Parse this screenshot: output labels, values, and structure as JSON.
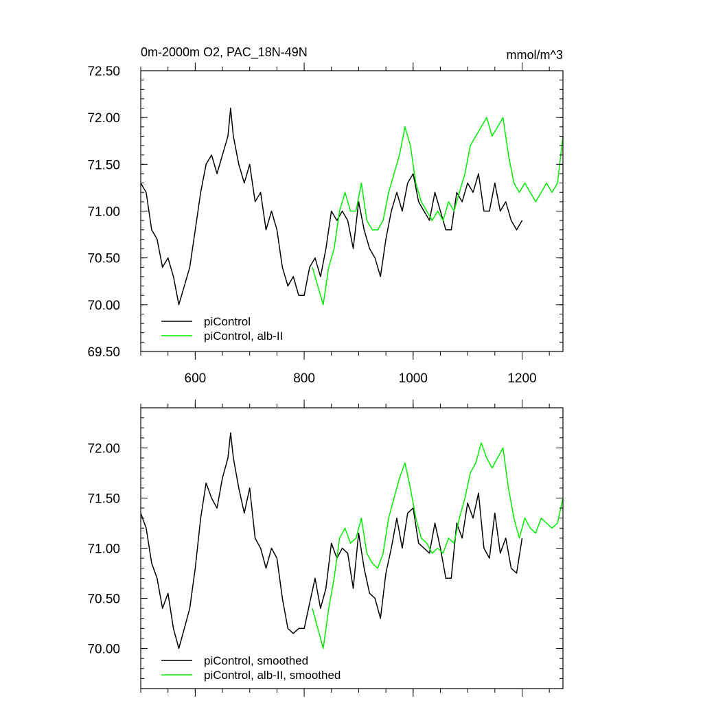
{
  "figure": {
    "top_panel_title": "0m-2000m O2, PAC_18N-49N",
    "units": "mmol/m^3"
  },
  "colors": {
    "control": "#000000",
    "alb": "#00ee00",
    "background": "#ffffff"
  },
  "chart_data": [
    {
      "type": "line",
      "panel": "top",
      "title": "0m-2000m O2, PAC_18N-49N",
      "units": "mmol/m^3",
      "xlim": [
        500,
        1275
      ],
      "ylim": [
        69.5,
        72.5
      ],
      "x_ticks": [
        600,
        800,
        1000,
        1200
      ],
      "x_tick_labels": [
        "600",
        "800",
        "1000",
        "1200"
      ],
      "y_ticks": [
        69.5,
        70.0,
        70.5,
        71.0,
        71.5,
        72.0,
        72.5
      ],
      "y_tick_labels": [
        "69.50",
        "70.00",
        "70.50",
        "71.00",
        "71.50",
        "72.00",
        "72.50"
      ],
      "legend": {
        "position": "bottom-left",
        "entries": [
          "piControl",
          "piControl, alb-II"
        ]
      },
      "series": [
        {
          "name": "piControl",
          "color": "#000000",
          "x": [
            500,
            510,
            520,
            530,
            540,
            550,
            560,
            570,
            580,
            590,
            600,
            610,
            620,
            630,
            640,
            650,
            660,
            665,
            670,
            680,
            690,
            700,
            710,
            720,
            730,
            740,
            750,
            760,
            770,
            780,
            790,
            800,
            810,
            820,
            830,
            840,
            850,
            860,
            870,
            880,
            890,
            900,
            910,
            920,
            930,
            940,
            950,
            960,
            970,
            980,
            990,
            1000,
            1010,
            1020,
            1030,
            1040,
            1050,
            1060,
            1070,
            1080,
            1090,
            1100,
            1110,
            1120,
            1130,
            1140,
            1150,
            1160,
            1170,
            1180,
            1190,
            1200
          ],
          "y": [
            71.3,
            71.2,
            70.8,
            70.7,
            70.4,
            70.5,
            70.3,
            70.0,
            70.2,
            70.4,
            70.8,
            71.2,
            71.5,
            71.6,
            71.4,
            71.6,
            71.8,
            72.1,
            71.8,
            71.5,
            71.3,
            71.5,
            71.1,
            71.2,
            70.8,
            71.0,
            70.8,
            70.4,
            70.2,
            70.3,
            70.1,
            70.1,
            70.4,
            70.5,
            70.3,
            70.6,
            71.0,
            70.9,
            71.0,
            70.9,
            70.6,
            71.1,
            70.8,
            70.6,
            70.5,
            70.3,
            70.7,
            71.0,
            71.2,
            71.0,
            71.3,
            71.4,
            71.1,
            71.0,
            70.9,
            71.2,
            71.0,
            70.8,
            70.8,
            71.2,
            71.1,
            71.3,
            71.2,
            71.4,
            71.0,
            71.0,
            71.3,
            71.0,
            71.1,
            70.9,
            70.8,
            70.9
          ]
        },
        {
          "name": "piControl, alb-II",
          "color": "#00ee00",
          "x": [
            815,
            825,
            835,
            845,
            855,
            865,
            875,
            885,
            895,
            905,
            915,
            925,
            935,
            945,
            955,
            965,
            975,
            985,
            995,
            1005,
            1015,
            1025,
            1035,
            1045,
            1055,
            1065,
            1075,
            1085,
            1095,
            1105,
            1115,
            1125,
            1135,
            1145,
            1155,
            1165,
            1175,
            1185,
            1195,
            1205,
            1215,
            1225,
            1235,
            1245,
            1255,
            1265,
            1275
          ],
          "y": [
            70.4,
            70.2,
            70.0,
            70.4,
            70.6,
            71.0,
            71.2,
            71.0,
            71.0,
            71.3,
            70.9,
            70.8,
            70.8,
            70.9,
            71.2,
            71.4,
            71.6,
            71.9,
            71.7,
            71.3,
            71.1,
            71.0,
            70.9,
            71.0,
            70.9,
            71.1,
            71.0,
            71.2,
            71.4,
            71.7,
            71.8,
            71.9,
            72.0,
            71.8,
            71.9,
            72.0,
            71.6,
            71.3,
            71.2,
            71.3,
            71.2,
            71.1,
            71.2,
            71.3,
            71.2,
            71.3,
            71.8
          ]
        }
      ]
    },
    {
      "type": "line",
      "panel": "bottom",
      "xlim": [
        500,
        1275
      ],
      "ylim": [
        69.6,
        72.4
      ],
      "x_ticks": [
        600,
        800,
        1000,
        1200
      ],
      "y_ticks": [
        70.0,
        70.5,
        71.0,
        71.5,
        72.0
      ],
      "y_tick_labels": [
        "70.00",
        "70.50",
        "71.00",
        "71.50",
        "72.00"
      ],
      "legend": {
        "position": "bottom-left",
        "entries": [
          "piControl, smoothed",
          "piControl, alb-II, smoothed"
        ]
      },
      "series": [
        {
          "name": "piControl, smoothed",
          "color": "#000000",
          "x": [
            500,
            510,
            520,
            530,
            540,
            550,
            560,
            570,
            580,
            590,
            600,
            610,
            620,
            630,
            640,
            650,
            660,
            665,
            670,
            680,
            690,
            700,
            710,
            720,
            730,
            740,
            750,
            760,
            770,
            780,
            790,
            800,
            810,
            820,
            830,
            840,
            850,
            860,
            870,
            880,
            890,
            900,
            910,
            920,
            930,
            940,
            950,
            960,
            970,
            980,
            990,
            1000,
            1010,
            1020,
            1030,
            1040,
            1050,
            1060,
            1070,
            1080,
            1090,
            1100,
            1110,
            1120,
            1130,
            1140,
            1150,
            1160,
            1170,
            1180,
            1190,
            1200
          ],
          "y": [
            71.35,
            71.2,
            70.85,
            70.7,
            70.4,
            70.55,
            70.2,
            70.0,
            70.2,
            70.4,
            70.8,
            71.3,
            71.65,
            71.5,
            71.4,
            71.7,
            71.9,
            72.15,
            71.9,
            71.6,
            71.35,
            71.6,
            71.1,
            71.0,
            70.8,
            71.0,
            70.9,
            70.5,
            70.2,
            70.15,
            70.2,
            70.2,
            70.45,
            70.7,
            70.4,
            70.6,
            71.05,
            70.9,
            71.0,
            70.95,
            70.6,
            71.15,
            70.8,
            70.55,
            70.5,
            70.3,
            70.75,
            71.0,
            71.3,
            71.0,
            71.35,
            71.4,
            71.05,
            71.0,
            70.95,
            71.25,
            71.0,
            70.7,
            70.7,
            71.25,
            71.1,
            71.45,
            71.3,
            71.55,
            71.0,
            70.9,
            71.35,
            70.95,
            71.1,
            70.8,
            70.75,
            71.1
          ]
        },
        {
          "name": "piControl, alb-II, smoothed",
          "color": "#00ee00",
          "x": [
            815,
            825,
            835,
            845,
            855,
            865,
            875,
            885,
            895,
            905,
            915,
            925,
            935,
            945,
            955,
            965,
            975,
            985,
            995,
            1005,
            1015,
            1025,
            1035,
            1045,
            1055,
            1065,
            1075,
            1085,
            1095,
            1105,
            1115,
            1125,
            1135,
            1145,
            1155,
            1165,
            1175,
            1185,
            1195,
            1205,
            1215,
            1225,
            1235,
            1245,
            1255,
            1265,
            1275
          ],
          "y": [
            70.4,
            70.2,
            70.0,
            70.4,
            70.7,
            71.1,
            71.2,
            71.05,
            71.1,
            71.3,
            70.95,
            70.85,
            70.8,
            70.95,
            71.3,
            71.5,
            71.7,
            71.85,
            71.6,
            71.3,
            71.1,
            71.05,
            70.95,
            71.0,
            70.95,
            71.1,
            71.05,
            71.3,
            71.5,
            71.75,
            71.85,
            72.05,
            71.9,
            71.8,
            71.9,
            72.0,
            71.6,
            71.3,
            71.1,
            71.3,
            71.2,
            71.15,
            71.3,
            71.25,
            71.2,
            71.25,
            71.5
          ]
        }
      ]
    }
  ]
}
